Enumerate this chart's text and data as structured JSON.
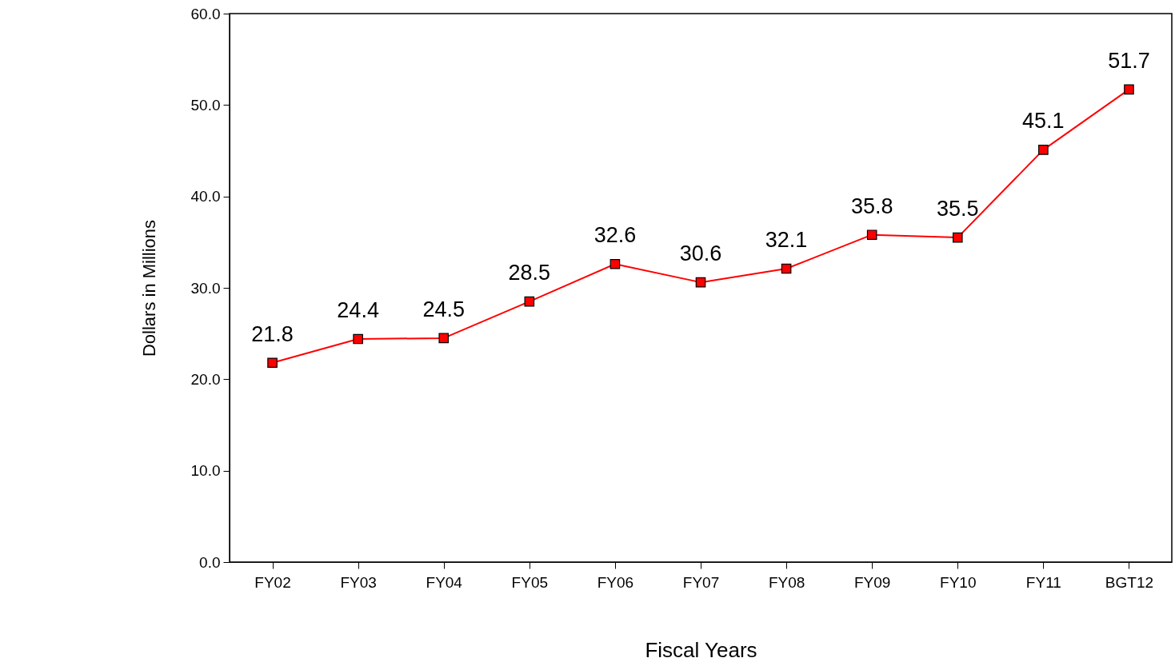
{
  "chart_data": {
    "type": "line",
    "xlabel": "Fiscal Years",
    "ylabel": "Dollars in Millions",
    "categories": [
      "FY02",
      "FY03",
      "FY04",
      "FY05",
      "FY06",
      "FY07",
      "FY08",
      "FY09",
      "FY10",
      "FY11",
      "BGT12"
    ],
    "series": [
      {
        "color": "#ff0000",
        "values": [
          21.8,
          24.4,
          24.5,
          28.5,
          32.6,
          30.6,
          32.1,
          35.8,
          35.5,
          45.1,
          51.7
        ]
      }
    ],
    "ylim": [
      0,
      60
    ],
    "yticks": [
      {
        "value": 0,
        "label": "0.0"
      },
      {
        "value": 10,
        "label": "10.0"
      },
      {
        "value": 20,
        "label": "20.0"
      },
      {
        "value": 30,
        "label": "30.0"
      },
      {
        "value": 40,
        "label": "40.0"
      },
      {
        "value": 50,
        "label": "50.0"
      },
      {
        "value": 60,
        "label": "60.0"
      }
    ],
    "data_labels": true,
    "marker": "square",
    "line_style": "solid",
    "grid": false
  }
}
